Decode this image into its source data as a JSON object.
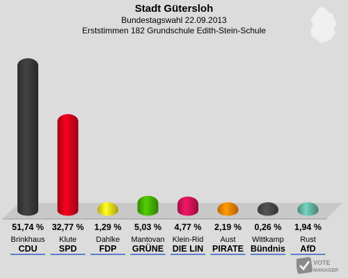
{
  "header": {
    "title": "Stadt Gütersloh",
    "subtitle": "Bundestagswahl 22.09.2013",
    "subtitle2": "Erststimmen 182 Grundschule Edith-Stein-Schule"
  },
  "watermark": {
    "text": "VOTE MANAGER",
    "icon": "vote-check-icon"
  },
  "map": {
    "icon": "germany-map-icon"
  },
  "chart_data": {
    "type": "bar",
    "title": "Stadt Gütersloh",
    "subtitle": "Bundestagswahl 22.09.2013",
    "ylim": [
      0,
      55
    ],
    "grid": false,
    "categories": [
      "CDU",
      "SPD",
      "FDP",
      "GRÜNE",
      "DIE LIN",
      "PIRATE",
      "Bündnis",
      "AfD"
    ],
    "candidates": [
      "Brinkhaus",
      "Klute",
      "Dahlke",
      "Mantovan",
      "Klein-Rid",
      "Aust",
      "Wittkamp",
      "Rust"
    ],
    "values": [
      51.74,
      32.77,
      1.29,
      5.03,
      4.77,
      2.19,
      0.26,
      1.94
    ],
    "value_labels": [
      "51,74 %",
      "32,77 %",
      "1,29 %",
      "5,03 %",
      "4,77 %",
      "2,19 %",
      "0,26 %",
      "1,94 %"
    ],
    "colors": [
      "#3a3a3a",
      "#d9001b",
      "#f5e21b",
      "#46b500",
      "#d4145a",
      "#ff8800",
      "#4a4a4a",
      "#66b8a4"
    ]
  }
}
